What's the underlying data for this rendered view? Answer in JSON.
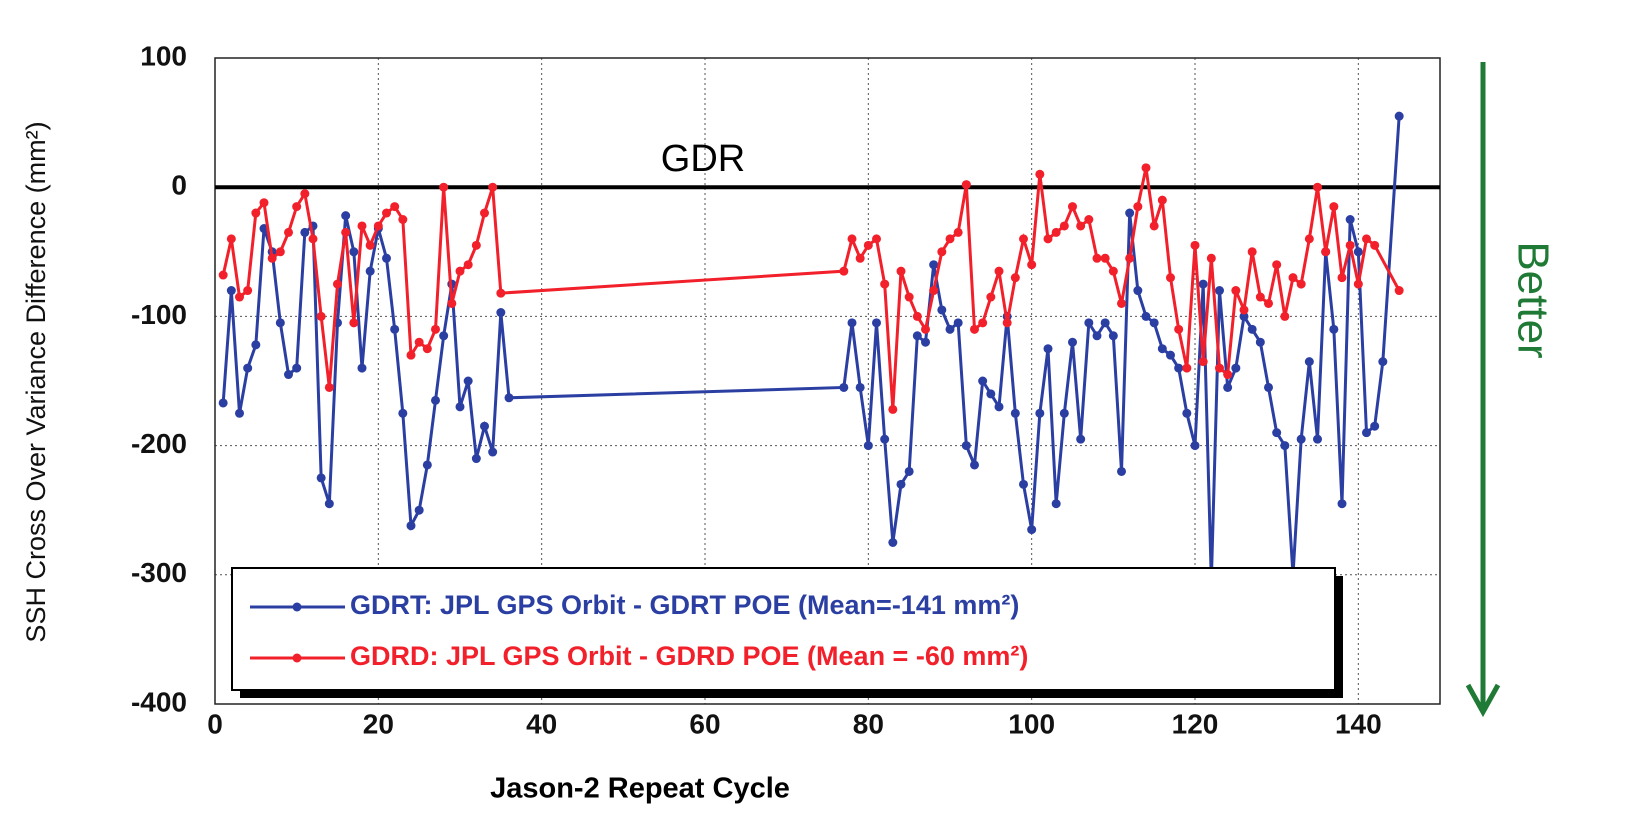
{
  "chart_data": {
    "type": "line",
    "x_label": "Jason-2 Repeat Cycle",
    "y_label": "SSH Cross Over Variance Difference (mm²)",
    "reference_line": {
      "value": 0,
      "label": "GDR"
    },
    "side_note": "Better",
    "xlim": [
      0,
      150
    ],
    "ylim": [
      -400,
      100
    ],
    "xticks": [
      0,
      20,
      40,
      60,
      80,
      100,
      120,
      140
    ],
    "yticks": [
      -400,
      -300,
      -200,
      -100,
      0,
      100
    ],
    "grid": true,
    "legend": "bottom-left",
    "series": [
      {
        "name": "GDRT: JPL GPS Orbit - GDRT POE (Mean=-141 mm²)",
        "color": "#2b3fa3",
        "x": [
          1,
          2,
          3,
          4,
          5,
          6,
          7,
          8,
          9,
          10,
          11,
          12,
          13,
          14,
          15,
          16,
          17,
          18,
          19,
          20,
          21,
          22,
          23,
          24,
          25,
          26,
          27,
          28,
          29,
          30,
          31,
          32,
          33,
          34,
          35,
          36,
          77,
          78,
          79,
          80,
          81,
          82,
          83,
          84,
          85,
          86,
          87,
          88,
          89,
          90,
          91,
          92,
          93,
          94,
          95,
          96,
          97,
          98,
          99,
          100,
          101,
          102,
          103,
          104,
          105,
          106,
          107,
          108,
          109,
          110,
          111,
          112,
          113,
          114,
          115,
          116,
          117,
          118,
          119,
          120,
          121,
          122,
          123,
          124,
          125,
          126,
          127,
          128,
          129,
          130,
          131,
          132,
          133,
          134,
          135,
          136,
          137,
          138,
          139,
          140,
          141,
          142,
          143,
          145
        ],
        "values": [
          -167,
          -80,
          -175,
          -140,
          -122,
          -32,
          -50,
          -105,
          -145,
          -140,
          -35,
          -30,
          -225,
          -245,
          -105,
          -22,
          -50,
          -140,
          -65,
          -32,
          -55,
          -110,
          -175,
          -262,
          -250,
          -215,
          -165,
          -115,
          -75,
          -170,
          -150,
          -210,
          -185,
          -205,
          -97,
          -163,
          -155,
          -105,
          -155,
          -200,
          -105,
          -195,
          -275,
          -230,
          -220,
          -115,
          -120,
          -60,
          -95,
          -110,
          -105,
          -200,
          -215,
          -150,
          -160,
          -170,
          -100,
          -175,
          -230,
          -265,
          -175,
          -125,
          -245,
          -175,
          -120,
          -195,
          -105,
          -115,
          -105,
          -115,
          -220,
          -20,
          -80,
          -100,
          -105,
          -125,
          -130,
          -140,
          -175,
          -200,
          -75,
          -305,
          -80,
          -155,
          -140,
          -100,
          -110,
          -120,
          -155,
          -190,
          -200,
          -300,
          -195,
          -135,
          -195,
          -50,
          -110,
          -245,
          -25,
          -50,
          -190,
          -185,
          -135,
          55
        ]
      },
      {
        "name": "GDRD: JPL GPS Orbit - GDRD POE  (Mean = -60 mm²)",
        "color": "#f2202a",
        "x": [
          1,
          2,
          3,
          4,
          5,
          6,
          7,
          8,
          9,
          10,
          11,
          12,
          13,
          14,
          15,
          16,
          17,
          18,
          19,
          20,
          21,
          22,
          23,
          24,
          25,
          26,
          27,
          28,
          29,
          30,
          31,
          32,
          33,
          34,
          35,
          77,
          78,
          79,
          80,
          81,
          82,
          83,
          84,
          85,
          86,
          87,
          88,
          89,
          90,
          91,
          92,
          93,
          94,
          95,
          96,
          97,
          98,
          99,
          100,
          101,
          102,
          103,
          104,
          105,
          106,
          107,
          108,
          109,
          110,
          111,
          112,
          113,
          114,
          115,
          116,
          117,
          118,
          119,
          120,
          121,
          122,
          123,
          124,
          125,
          126,
          127,
          128,
          129,
          130,
          131,
          132,
          133,
          134,
          135,
          136,
          137,
          138,
          139,
          140,
          141,
          142,
          145
        ],
        "values": [
          -68,
          -40,
          -85,
          -80,
          -20,
          -12,
          -55,
          -50,
          -35,
          -15,
          -5,
          -40,
          -100,
          -155,
          -75,
          -35,
          -105,
          -30,
          -45,
          -30,
          -20,
          -15,
          -25,
          -130,
          -120,
          -125,
          -110,
          0,
          -90,
          -65,
          -60,
          -45,
          -20,
          0,
          -82,
          -65,
          -40,
          -55,
          -45,
          -40,
          -75,
          -172,
          -65,
          -85,
          -100,
          -110,
          -80,
          -50,
          -40,
          -35,
          2,
          -110,
          -105,
          -85,
          -65,
          -105,
          -70,
          -40,
          -60,
          10,
          -40,
          -35,
          -30,
          -15,
          -30,
          -25,
          -55,
          -55,
          -65,
          -90,
          -55,
          -15,
          15,
          -30,
          -10,
          -70,
          -110,
          -140,
          -45,
          -135,
          -55,
          -140,
          -145,
          -80,
          -95,
          -50,
          -85,
          -90,
          -60,
          -100,
          -70,
          -75,
          -40,
          0,
          -50,
          -15,
          -70,
          -45,
          -75,
          -40,
          -45,
          -80
        ]
      }
    ]
  }
}
